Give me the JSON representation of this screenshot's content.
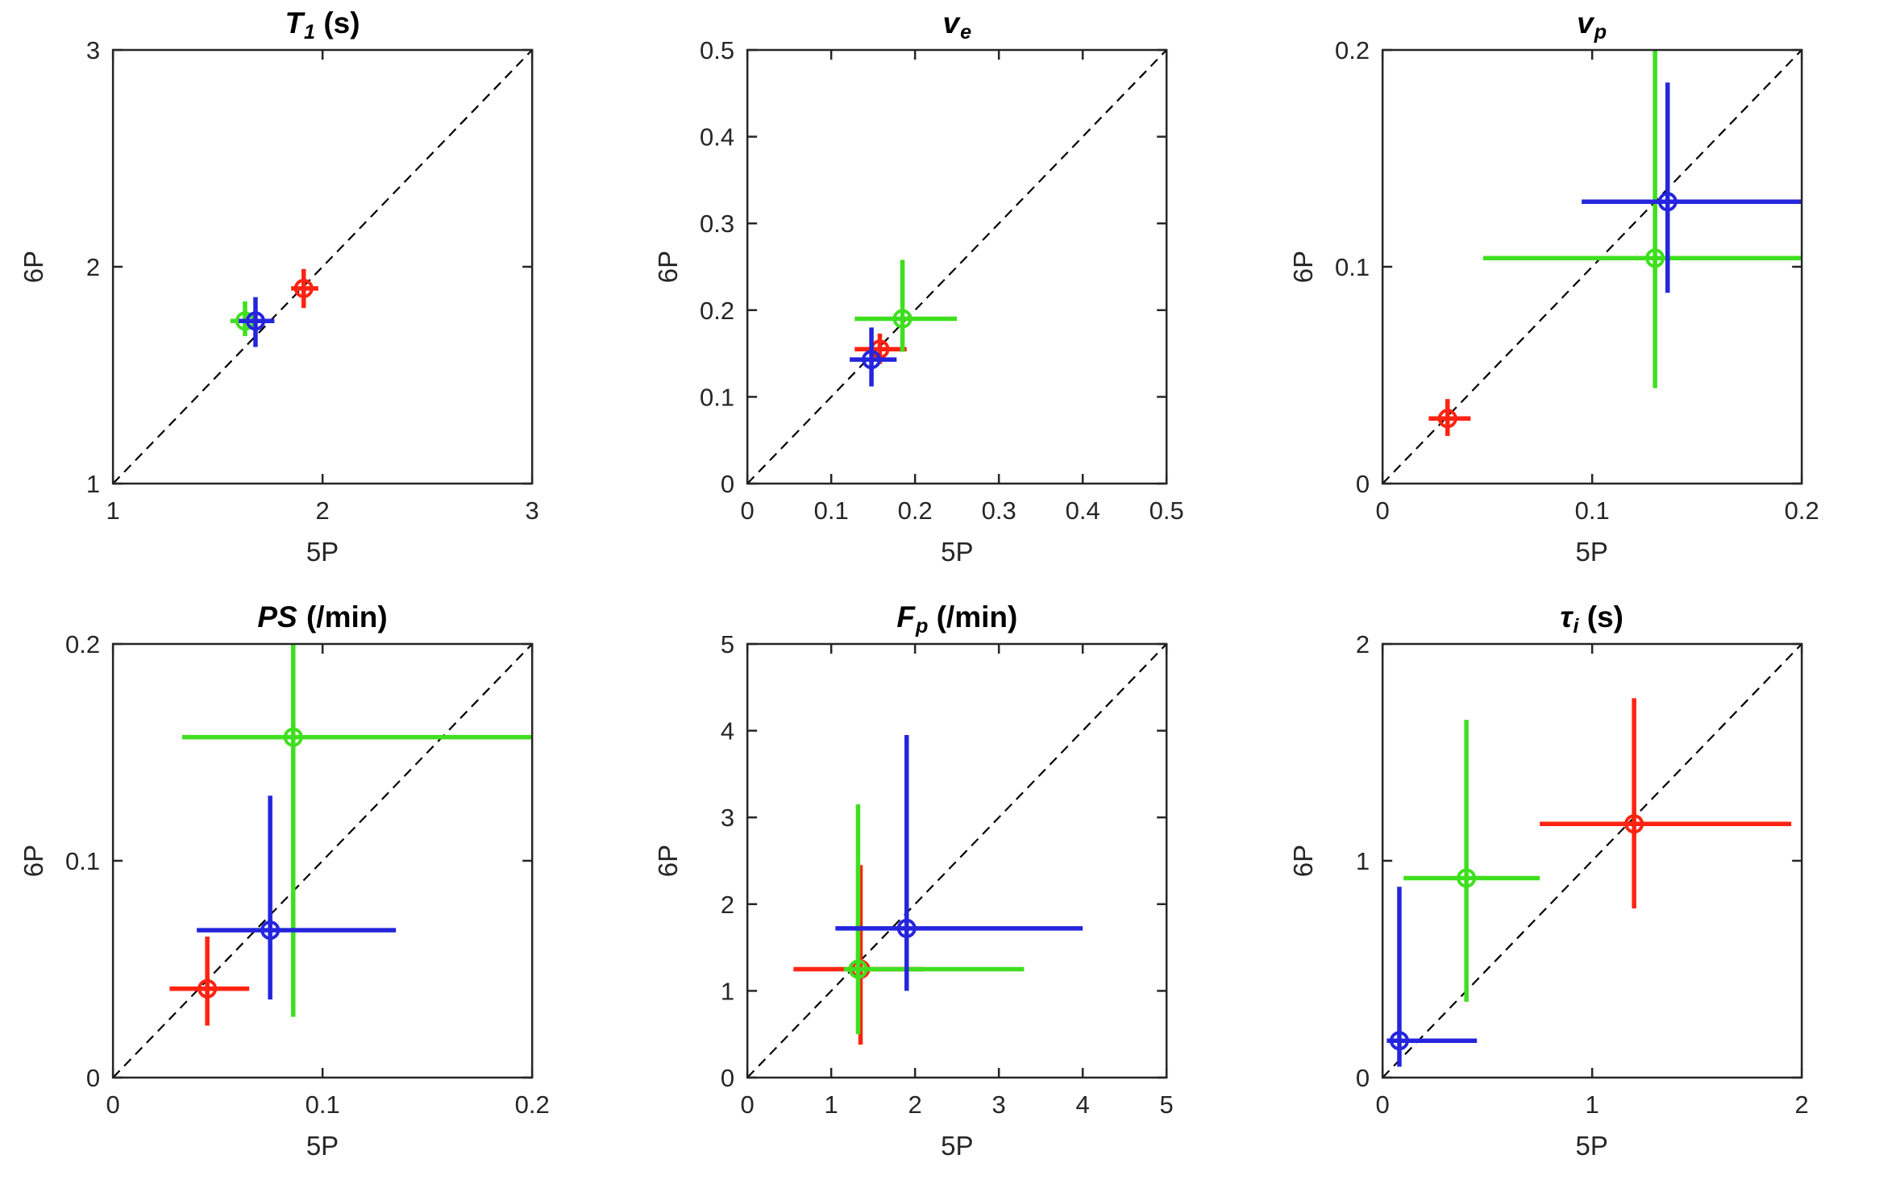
{
  "figure": {
    "background": "#ffffff",
    "axis_color": "#262626",
    "identity_line_color": "#000000",
    "identity_line_style": "dashed"
  },
  "chart_data": [
    {
      "type": "scatter",
      "title": {
        "main": "T",
        "sub": "1",
        "suffix": " (s)"
      },
      "xlabel": "5P",
      "ylabel": "6P",
      "xlim": [
        1,
        3
      ],
      "ylim": [
        1,
        3
      ],
      "xticks": [
        1,
        2,
        3
      ],
      "yticks": [
        1,
        2,
        3
      ],
      "identity_line": true,
      "series": [
        {
          "name": "red",
          "color": "#ff2312",
          "marker": "open-circle",
          "x": 1.91,
          "y": 1.9,
          "xerr": [
            1.85,
            1.98
          ],
          "yerr": [
            1.81,
            1.99
          ]
        },
        {
          "name": "green",
          "color": "#3fdf1f",
          "marker": "open-circle",
          "x": 1.63,
          "y": 1.75,
          "xerr": [
            1.56,
            1.71
          ],
          "yerr": [
            1.68,
            1.84
          ]
        },
        {
          "name": "blue",
          "color": "#2525dd",
          "marker": "open-circle",
          "x": 1.68,
          "y": 1.75,
          "xerr": [
            1.6,
            1.77
          ],
          "yerr": [
            1.63,
            1.86
          ]
        }
      ]
    },
    {
      "type": "scatter",
      "title": {
        "main": "v",
        "sub": "e",
        "suffix": ""
      },
      "xlabel": "5P",
      "ylabel": "6P",
      "xlim": [
        0,
        0.5
      ],
      "ylim": [
        0,
        0.5
      ],
      "xticks": [
        0,
        0.1,
        0.2,
        0.3,
        0.4,
        0.5
      ],
      "yticks": [
        0,
        0.1,
        0.2,
        0.3,
        0.4,
        0.5
      ],
      "identity_line": true,
      "series": [
        {
          "name": "red",
          "color": "#ff2312",
          "marker": "open-circle",
          "x": 0.158,
          "y": 0.155,
          "xerr": [
            0.128,
            0.19
          ],
          "yerr": [
            0.138,
            0.173
          ]
        },
        {
          "name": "green",
          "color": "#3fdf1f",
          "marker": "open-circle",
          "x": 0.185,
          "y": 0.19,
          "xerr": [
            0.128,
            0.25
          ],
          "yerr": [
            0.152,
            0.258
          ]
        },
        {
          "name": "blue",
          "color": "#2525dd",
          "marker": "open-circle",
          "x": 0.148,
          "y": 0.143,
          "xerr": [
            0.122,
            0.178
          ],
          "yerr": [
            0.112,
            0.18
          ]
        }
      ]
    },
    {
      "type": "scatter",
      "title": {
        "main": "v",
        "sub": "p",
        "suffix": ""
      },
      "xlabel": "5P",
      "ylabel": "6P",
      "xlim": [
        0,
        0.2
      ],
      "ylim": [
        0,
        0.2
      ],
      "xticks": [
        0,
        0.1,
        0.2
      ],
      "yticks": [
        0,
        0.1,
        0.2
      ],
      "identity_line": true,
      "series": [
        {
          "name": "red",
          "color": "#ff2312",
          "marker": "open-circle",
          "x": 0.031,
          "y": 0.03,
          "xerr": [
            0.022,
            0.042
          ],
          "yerr": [
            0.022,
            0.039
          ]
        },
        {
          "name": "green",
          "color": "#3fdf1f",
          "marker": "open-circle",
          "x": 0.13,
          "y": 0.104,
          "xerr": [
            0.048,
            0.2
          ],
          "yerr": [
            0.044,
            0.2
          ]
        },
        {
          "name": "blue",
          "color": "#2525dd",
          "marker": "open-circle",
          "x": 0.136,
          "y": 0.13,
          "xerr": [
            0.095,
            0.2
          ],
          "yerr": [
            0.088,
            0.185
          ]
        }
      ]
    },
    {
      "type": "scatter",
      "title": {
        "main": "PS",
        "sub": "",
        "suffix": " (/min)"
      },
      "xlabel": "5P",
      "ylabel": "6P",
      "xlim": [
        0,
        0.2
      ],
      "ylim": [
        0,
        0.2
      ],
      "xticks": [
        0,
        0.1,
        0.2
      ],
      "yticks": [
        0,
        0.1,
        0.2
      ],
      "identity_line": true,
      "series": [
        {
          "name": "red",
          "color": "#ff2312",
          "marker": "open-circle",
          "x": 0.045,
          "y": 0.041,
          "xerr": [
            0.027,
            0.065
          ],
          "yerr": [
            0.024,
            0.065
          ]
        },
        {
          "name": "green",
          "color": "#3fdf1f",
          "marker": "open-circle",
          "x": 0.086,
          "y": 0.157,
          "xerr": [
            0.033,
            0.2
          ],
          "yerr": [
            0.028,
            0.2
          ]
        },
        {
          "name": "blue",
          "color": "#2525dd",
          "marker": "open-circle",
          "x": 0.075,
          "y": 0.068,
          "xerr": [
            0.04,
            0.135
          ],
          "yerr": [
            0.036,
            0.13
          ]
        }
      ]
    },
    {
      "type": "scatter",
      "title": {
        "main": "F",
        "sub": "p",
        "suffix": " (/min)"
      },
      "xlabel": "5P",
      "ylabel": "6P",
      "xlim": [
        0,
        5
      ],
      "ylim": [
        0,
        5
      ],
      "xticks": [
        0,
        1,
        2,
        3,
        4,
        5
      ],
      "yticks": [
        0,
        1,
        2,
        3,
        4,
        5
      ],
      "identity_line": true,
      "series": [
        {
          "name": "red",
          "color": "#ff2312",
          "marker": "open-circle",
          "x": 1.35,
          "y": 1.25,
          "xerr": [
            0.55,
            2.1
          ],
          "yerr": [
            0.38,
            2.45
          ]
        },
        {
          "name": "green",
          "color": "#3fdf1f",
          "marker": "open-circle",
          "x": 1.32,
          "y": 1.25,
          "xerr": [
            1.15,
            3.3
          ],
          "yerr": [
            0.5,
            3.15
          ]
        },
        {
          "name": "blue",
          "color": "#2525dd",
          "marker": "open-circle",
          "x": 1.9,
          "y": 1.72,
          "xerr": [
            1.05,
            4.0
          ],
          "yerr": [
            1.0,
            3.95
          ]
        }
      ]
    },
    {
      "type": "scatter",
      "title": {
        "main": "τ",
        "sub": "i",
        "suffix": " (s)"
      },
      "xlabel": "5P",
      "ylabel": "6P",
      "xlim": [
        0,
        2
      ],
      "ylim": [
        0,
        2
      ],
      "xticks": [
        0,
        1,
        2
      ],
      "yticks": [
        0,
        1,
        2
      ],
      "identity_line": true,
      "series": [
        {
          "name": "red",
          "color": "#ff2312",
          "marker": "open-circle",
          "x": 1.2,
          "y": 1.17,
          "xerr": [
            0.75,
            1.95
          ],
          "yerr": [
            0.78,
            1.75
          ]
        },
        {
          "name": "green",
          "color": "#3fdf1f",
          "marker": "open-circle",
          "x": 0.4,
          "y": 0.92,
          "xerr": [
            0.1,
            0.75
          ],
          "yerr": [
            0.35,
            1.65
          ]
        },
        {
          "name": "blue",
          "color": "#2525dd",
          "marker": "open-circle",
          "x": 0.08,
          "y": 0.17,
          "xerr": [
            0.02,
            0.45
          ],
          "yerr": [
            0.05,
            0.88
          ]
        }
      ]
    }
  ]
}
